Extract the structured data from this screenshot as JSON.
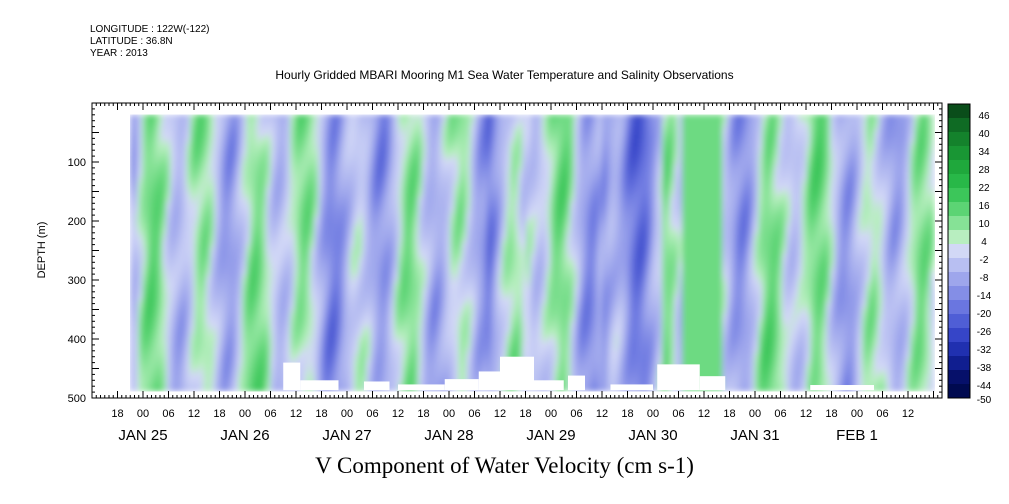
{
  "header": {
    "longitude": "LONGITUDE : 122W(-122)",
    "latitude": "LATITUDE : 36.8N",
    "year": "YEAR : 2013",
    "title": "Hourly Gridded MBARI Mooring M1 Sea Water Temperature and Salinity Observations"
  },
  "chart_data": {
    "type": "heatmap",
    "title": "Hourly Gridded MBARI Mooring M1 Sea Water Temperature and Salinity Observations",
    "xlabel": "V Component of Water Velocity (cm s-1)",
    "ylabel": "DEPTH (m)",
    "x_range_hours_from_jan25_00": [
      -12,
      188
    ],
    "data_x_range_hours_from_jan25_00": [
      -3,
      186
    ],
    "ylim": [
      500,
      0
    ],
    "data_depth_range": [
      20,
      485
    ],
    "y_ticks": [
      100,
      200,
      300,
      400,
      500
    ],
    "x_hour_ticks": [
      "18",
      "00",
      "06",
      "12",
      "18",
      "00",
      "06",
      "12",
      "18",
      "00",
      "06",
      "12",
      "18",
      "00",
      "06",
      "12",
      "18",
      "00",
      "06",
      "12",
      "18",
      "00",
      "06",
      "12",
      "18",
      "00",
      "06",
      "12",
      "18",
      "00",
      "06",
      "12"
    ],
    "x_date_labels": [
      "JAN 25",
      "JAN 26",
      "JAN 27",
      "JAN 28",
      "JAN 29",
      "JAN 30",
      "JAN 31",
      "FEB  1"
    ],
    "colorbar": {
      "levels": [
        46,
        40,
        34,
        28,
        22,
        16,
        10,
        4,
        -2,
        -8,
        -14,
        -20,
        -26,
        -32,
        -38,
        -44,
        -50
      ],
      "colors_top_to_bottom": [
        "#0a4d1a",
        "#0f6b24",
        "#14822c",
        "#199634",
        "#1fa83c",
        "#28b848",
        "#3cc65a",
        "#5cd474",
        "#86e296",
        "#b8eec0",
        "#d2d8f6",
        "#b8bff2",
        "#9ea6ec",
        "#848ee6",
        "#6a76e0",
        "#4f5ed6",
        "#3645c8",
        "#2030b0",
        "#101e90",
        "#06106a",
        "#000a50"
      ]
    },
    "description_of_field": "Alternating vertical bands of positive (green) and negative (blue) meridional velocity over depth 20-485 m from Jan 25 to Feb 1, 2013; white gaps near the bottom indicate missing data."
  }
}
